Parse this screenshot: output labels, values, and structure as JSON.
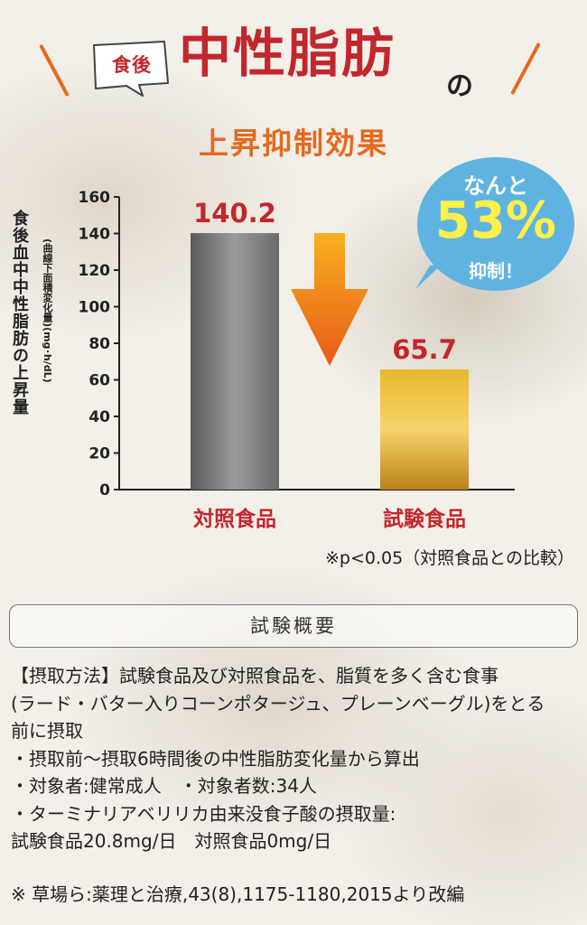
{
  "header": {
    "tag": "食後",
    "title": "中性脂肪",
    "particle": "の",
    "subtitle": "上昇抑制効果"
  },
  "badge": {
    "line1": "なんと",
    "percent": "53%",
    "line3": "抑制！"
  },
  "chart_data": {
    "type": "bar",
    "title": "",
    "ylabel": "食後血中中性脂肪の上昇量",
    "ylabel_sub": "(曲線下面積変化量)(mg･h/dL)",
    "categories": [
      "対照食品",
      "試験食品"
    ],
    "values": [
      140.2,
      65.7
    ],
    "value_labels": [
      "140.2",
      "65.7"
    ],
    "ylim": [
      0,
      160
    ],
    "yticks": [
      0,
      20,
      40,
      60,
      80,
      100,
      120,
      140,
      160
    ],
    "grid": false,
    "colors": [
      "#7a7a7a",
      "#d9a520"
    ],
    "label_color": "#c2272d"
  },
  "note": "※p<0.05（対照食品との比較）",
  "overview_title": "試験概要",
  "details": [
    "【摂取方法】試験食品及び対照食品を、脂質を多く含む食事",
    "(ラード・バター入りコーンポタージュ、プレーンベーグル)をとる",
    "前に摂取",
    "・摂取前～摂取6時間後の中性脂肪変化量から算出",
    "・対象者:健常成人　・対象者数:34人",
    "・ターミナリアベリリカ由来没食子酸の摂取量:",
    "試験食品20.8mg/日　対照食品0mg/日"
  ],
  "source": "※ 草場ら:薬理と治療,43(8),1175-1180,2015より改編"
}
